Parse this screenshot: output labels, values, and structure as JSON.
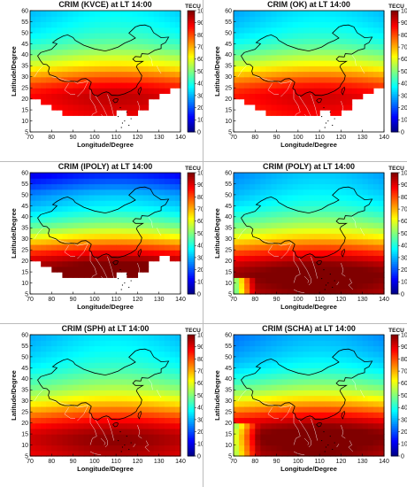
{
  "figure": {
    "xlabel": "Longitude/Degree",
    "ylabel": "Latitude/Degree",
    "colorbar_unit": "TECU"
  },
  "chart_data": [
    {
      "type": "heatmap",
      "title": "CRIM (KVCE) at LT 14:00",
      "xlabel": "Longitude/Degree",
      "ylabel": "Latitude/Degree",
      "xlim": [
        70,
        140
      ],
      "ylim": [
        5,
        60
      ],
      "x_ticks": [
        70,
        80,
        90,
        100,
        110,
        120,
        130,
        140
      ],
      "y_ticks": [
        5,
        10,
        15,
        20,
        25,
        30,
        35,
        40,
        45,
        50,
        55,
        60
      ],
      "colorbar": {
        "label": "TECU",
        "range": [
          0,
          100
        ],
        "ticks": [
          0,
          10,
          20,
          30,
          40,
          50,
          60,
          70,
          80,
          90,
          100
        ],
        "colormap": "jet"
      },
      "tec_peak_latitude_deg": 20,
      "tec_peak_value": 90,
      "tec_high_latitude_value": 40,
      "coverage_south_edge": "masked"
    },
    {
      "type": "heatmap",
      "title": "CRIM (OK) at LT 14:00",
      "xlabel": "Longitude/Degree",
      "ylabel": "Latitude/Degree",
      "xlim": [
        70,
        140
      ],
      "ylim": [
        5,
        60
      ],
      "x_ticks": [
        70,
        80,
        90,
        100,
        110,
        120,
        130,
        140
      ],
      "y_ticks": [
        5,
        10,
        15,
        20,
        25,
        30,
        35,
        40,
        45,
        50,
        55,
        60
      ],
      "colorbar": {
        "label": "TECU",
        "range": [
          0,
          100
        ],
        "ticks": [
          0,
          10,
          20,
          30,
          40,
          50,
          60,
          70,
          80,
          90,
          100
        ],
        "colormap": "jet"
      },
      "tec_peak_latitude_deg": 20,
      "tec_peak_value": 88,
      "tec_high_latitude_value": 38,
      "coverage_south_edge": "masked"
    },
    {
      "type": "heatmap",
      "title": "CRIM (IPOLY) at LT 14:00",
      "xlabel": "Longitude/Degree",
      "ylabel": "Latitude/Degree",
      "xlim": [
        70,
        140
      ],
      "ylim": [
        5,
        60
      ],
      "x_ticks": [
        70,
        80,
        90,
        100,
        110,
        120,
        130,
        140
      ],
      "y_ticks": [
        5,
        10,
        15,
        20,
        25,
        30,
        35,
        40,
        45,
        50,
        55,
        60
      ],
      "colorbar": {
        "label": "TECU",
        "range": [
          0,
          100
        ],
        "ticks": [
          0,
          10,
          20,
          30,
          40,
          50,
          60,
          70,
          80,
          90,
          100
        ],
        "colormap": "jet"
      },
      "tec_peak_latitude_deg": 15,
      "tec_peak_value": 100,
      "tec_high_latitude_value": 30,
      "coverage_south_edge": "masked"
    },
    {
      "type": "heatmap",
      "title": "CRIM (POLY) at LT 14:00",
      "xlabel": "Longitude/Degree",
      "ylabel": "Latitude/Degree",
      "xlim": [
        70,
        140
      ],
      "ylim": [
        5,
        60
      ],
      "x_ticks": [
        70,
        80,
        90,
        100,
        110,
        120,
        130,
        140
      ],
      "y_ticks": [
        5,
        10,
        15,
        20,
        25,
        30,
        35,
        40,
        45,
        50,
        55,
        60
      ],
      "colorbar": {
        "label": "TECU",
        "range": [
          0,
          100
        ],
        "ticks": [
          0,
          10,
          20,
          30,
          40,
          50,
          60,
          70,
          80,
          90,
          100
        ],
        "colormap": "jet"
      },
      "tec_peak_latitude_deg": 13,
      "tec_peak_value": 100,
      "tec_high_latitude_value": 35,
      "coverage_south_edge": "full"
    },
    {
      "type": "heatmap",
      "title": "CRIM (SPH) at LT 14:00",
      "xlabel": "Longitude/Degree",
      "ylabel": "Latitude/Degree",
      "xlim": [
        70,
        140
      ],
      "ylim": [
        5,
        60
      ],
      "x_ticks": [
        70,
        80,
        90,
        100,
        110,
        120,
        130,
        140
      ],
      "y_ticks": [
        5,
        10,
        15,
        20,
        25,
        30,
        35,
        40,
        45,
        50,
        55,
        60
      ],
      "colorbar": {
        "label": "TECU",
        "range": [
          0,
          100
        ],
        "ticks": [
          0,
          10,
          20,
          30,
          40,
          50,
          60,
          70,
          80,
          90,
          100
        ],
        "colormap": "jet"
      },
      "tec_peak_latitude_deg": 12,
      "tec_peak_value": 95,
      "tec_high_latitude_value": 38,
      "coverage_south_edge": "full"
    },
    {
      "type": "heatmap",
      "title": "CRIM (SCHA) at LT 14:00",
      "xlabel": "Longitude/Degree",
      "ylabel": "Latitude/Degree",
      "xlim": [
        70,
        140
      ],
      "ylim": [
        5,
        60
      ],
      "x_ticks": [
        70,
        80,
        90,
        100,
        110,
        120,
        130,
        140
      ],
      "y_ticks": [
        5,
        10,
        15,
        20,
        25,
        30,
        35,
        40,
        45,
        50,
        55,
        60
      ],
      "colorbar": {
        "label": "TECU",
        "range": [
          0,
          100
        ],
        "ticks": [
          0,
          10,
          20,
          30,
          40,
          50,
          60,
          70,
          80,
          90,
          100
        ],
        "colormap": "jet"
      },
      "tec_peak_latitude_deg": 13,
      "tec_peak_value": 100,
      "tec_high_latitude_value": 33,
      "coverage_south_edge": "full"
    }
  ]
}
